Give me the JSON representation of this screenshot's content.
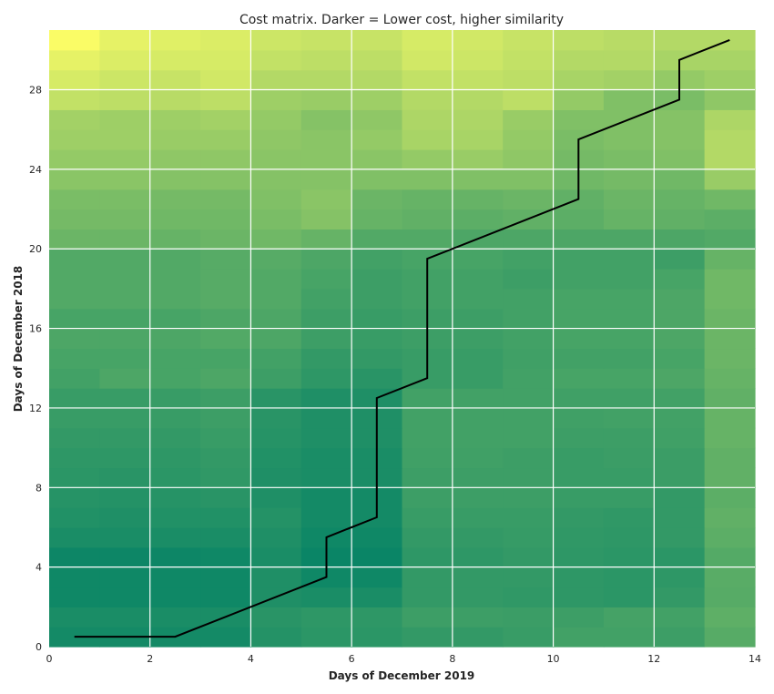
{
  "chart_data": {
    "type": "heatmap",
    "title": "Cost matrix. Darker = Lower cost, higher similarity",
    "xlabel": "Days of December 2019",
    "ylabel": "Days of December 2018",
    "xlim": [
      0,
      14
    ],
    "ylim": [
      0,
      31
    ],
    "x_ticks": [
      0,
      2,
      4,
      6,
      8,
      10,
      12,
      14
    ],
    "y_ticks": [
      0,
      4,
      8,
      12,
      16,
      20,
      24,
      28
    ],
    "grid": true,
    "colormap": "summer",
    "colors": {
      "low": "#008066",
      "high": "#ffff66",
      "path": "#000000",
      "grid": "#ffffff"
    },
    "cost_grid": {
      "rows": 31,
      "cols": 14,
      "row_order": "bottom-to-top",
      "values": [
        [
          0.08,
          0.08,
          0.08,
          0.08,
          0.14,
          0.17,
          0.17,
          0.2,
          0.2,
          0.22,
          0.26,
          0.26,
          0.24,
          0.34
        ],
        [
          0.1,
          0.1,
          0.1,
          0.1,
          0.16,
          0.18,
          0.18,
          0.24,
          0.24,
          0.23,
          0.24,
          0.27,
          0.26,
          0.37
        ],
        [
          0.06,
          0.06,
          0.06,
          0.06,
          0.12,
          0.1,
          0.1,
          0.2,
          0.2,
          0.19,
          0.18,
          0.17,
          0.2,
          0.34
        ],
        [
          0.06,
          0.06,
          0.06,
          0.06,
          0.12,
          0.06,
          0.06,
          0.2,
          0.2,
          0.2,
          0.18,
          0.17,
          0.18,
          0.35
        ],
        [
          0.05,
          0.05,
          0.05,
          0.06,
          0.1,
          0.04,
          0.04,
          0.18,
          0.18,
          0.2,
          0.18,
          0.17,
          0.17,
          0.33
        ],
        [
          0.1,
          0.1,
          0.1,
          0.1,
          0.12,
          0.06,
          0.06,
          0.2,
          0.2,
          0.21,
          0.19,
          0.18,
          0.2,
          0.36
        ],
        [
          0.13,
          0.12,
          0.13,
          0.13,
          0.14,
          0.08,
          0.08,
          0.22,
          0.22,
          0.22,
          0.2,
          0.19,
          0.2,
          0.38
        ],
        [
          0.15,
          0.14,
          0.15,
          0.16,
          0.12,
          0.08,
          0.08,
          0.24,
          0.24,
          0.24,
          0.22,
          0.22,
          0.2,
          0.36
        ],
        [
          0.17,
          0.16,
          0.17,
          0.19,
          0.12,
          0.1,
          0.1,
          0.24,
          0.24,
          0.24,
          0.22,
          0.22,
          0.23,
          0.38
        ],
        [
          0.18,
          0.18,
          0.18,
          0.2,
          0.13,
          0.1,
          0.1,
          0.25,
          0.25,
          0.24,
          0.22,
          0.23,
          0.23,
          0.38
        ],
        [
          0.2,
          0.2,
          0.2,
          0.22,
          0.15,
          0.12,
          0.12,
          0.26,
          0.26,
          0.26,
          0.24,
          0.24,
          0.25,
          0.4
        ],
        [
          0.22,
          0.22,
          0.22,
          0.24,
          0.16,
          0.12,
          0.12,
          0.26,
          0.26,
          0.26,
          0.25,
          0.26,
          0.26,
          0.4
        ],
        [
          0.22,
          0.22,
          0.22,
          0.24,
          0.16,
          0.12,
          0.12,
          0.26,
          0.26,
          0.26,
          0.25,
          0.25,
          0.26,
          0.38
        ],
        [
          0.26,
          0.3,
          0.28,
          0.3,
          0.24,
          0.18,
          0.16,
          0.22,
          0.22,
          0.26,
          0.28,
          0.28,
          0.3,
          0.4
        ],
        [
          0.28,
          0.28,
          0.28,
          0.28,
          0.26,
          0.2,
          0.2,
          0.22,
          0.22,
          0.25,
          0.26,
          0.26,
          0.28,
          0.42
        ],
        [
          0.3,
          0.3,
          0.3,
          0.32,
          0.3,
          0.24,
          0.22,
          0.24,
          0.24,
          0.26,
          0.28,
          0.28,
          0.3,
          0.42
        ],
        [
          0.28,
          0.28,
          0.28,
          0.3,
          0.3,
          0.24,
          0.22,
          0.24,
          0.24,
          0.26,
          0.28,
          0.28,
          0.3,
          0.42
        ],
        [
          0.32,
          0.32,
          0.32,
          0.34,
          0.32,
          0.26,
          0.24,
          0.26,
          0.26,
          0.26,
          0.28,
          0.28,
          0.3,
          0.44
        ],
        [
          0.32,
          0.32,
          0.32,
          0.34,
          0.32,
          0.28,
          0.24,
          0.26,
          0.26,
          0.24,
          0.26,
          0.26,
          0.28,
          0.44
        ],
        [
          0.32,
          0.32,
          0.32,
          0.34,
          0.34,
          0.3,
          0.26,
          0.28,
          0.28,
          0.26,
          0.26,
          0.26,
          0.24,
          0.4
        ],
        [
          0.42,
          0.42,
          0.4,
          0.42,
          0.44,
          0.4,
          0.32,
          0.32,
          0.3,
          0.3,
          0.3,
          0.3,
          0.3,
          0.32
        ],
        [
          0.46,
          0.46,
          0.44,
          0.44,
          0.48,
          0.52,
          0.4,
          0.38,
          0.36,
          0.38,
          0.36,
          0.4,
          0.38,
          0.36
        ],
        [
          0.48,
          0.48,
          0.46,
          0.46,
          0.5,
          0.54,
          0.42,
          0.4,
          0.4,
          0.42,
          0.38,
          0.42,
          0.4,
          0.44
        ],
        [
          0.54,
          0.54,
          0.52,
          0.52,
          0.52,
          0.52,
          0.5,
          0.5,
          0.5,
          0.5,
          0.44,
          0.46,
          0.44,
          0.6
        ],
        [
          0.58,
          0.58,
          0.56,
          0.56,
          0.54,
          0.54,
          0.54,
          0.58,
          0.6,
          0.56,
          0.46,
          0.48,
          0.5,
          0.7
        ],
        [
          0.62,
          0.62,
          0.6,
          0.6,
          0.56,
          0.54,
          0.58,
          0.66,
          0.66,
          0.58,
          0.48,
          0.5,
          0.52,
          0.7
        ],
        [
          0.64,
          0.62,
          0.62,
          0.64,
          0.58,
          0.52,
          0.56,
          0.68,
          0.68,
          0.6,
          0.5,
          0.5,
          0.52,
          0.68
        ],
        [
          0.76,
          0.74,
          0.72,
          0.74,
          0.62,
          0.6,
          0.62,
          0.7,
          0.7,
          0.74,
          0.58,
          0.5,
          0.48,
          0.56
        ],
        [
          0.84,
          0.8,
          0.78,
          0.82,
          0.7,
          0.7,
          0.7,
          0.76,
          0.76,
          0.74,
          0.66,
          0.64,
          0.58,
          0.62
        ],
        [
          0.9,
          0.86,
          0.84,
          0.84,
          0.76,
          0.74,
          0.74,
          0.82,
          0.8,
          0.76,
          0.7,
          0.7,
          0.66,
          0.66
        ],
        [
          0.98,
          0.9,
          0.88,
          0.86,
          0.8,
          0.78,
          0.78,
          0.84,
          0.82,
          0.78,
          0.74,
          0.72,
          0.7,
          0.7
        ]
      ]
    },
    "warping_path": {
      "x": [
        0.5,
        2.5,
        5.5,
        5.5,
        6.5,
        6.5,
        7.5,
        7.5,
        10.5,
        10.5,
        12.5,
        12.5,
        13.5
      ],
      "y": [
        0.5,
        0.5,
        3.5,
        5.5,
        6.5,
        12.5,
        13.5,
        19.5,
        22.5,
        25.5,
        27.5,
        29.5,
        30.5
      ]
    }
  }
}
